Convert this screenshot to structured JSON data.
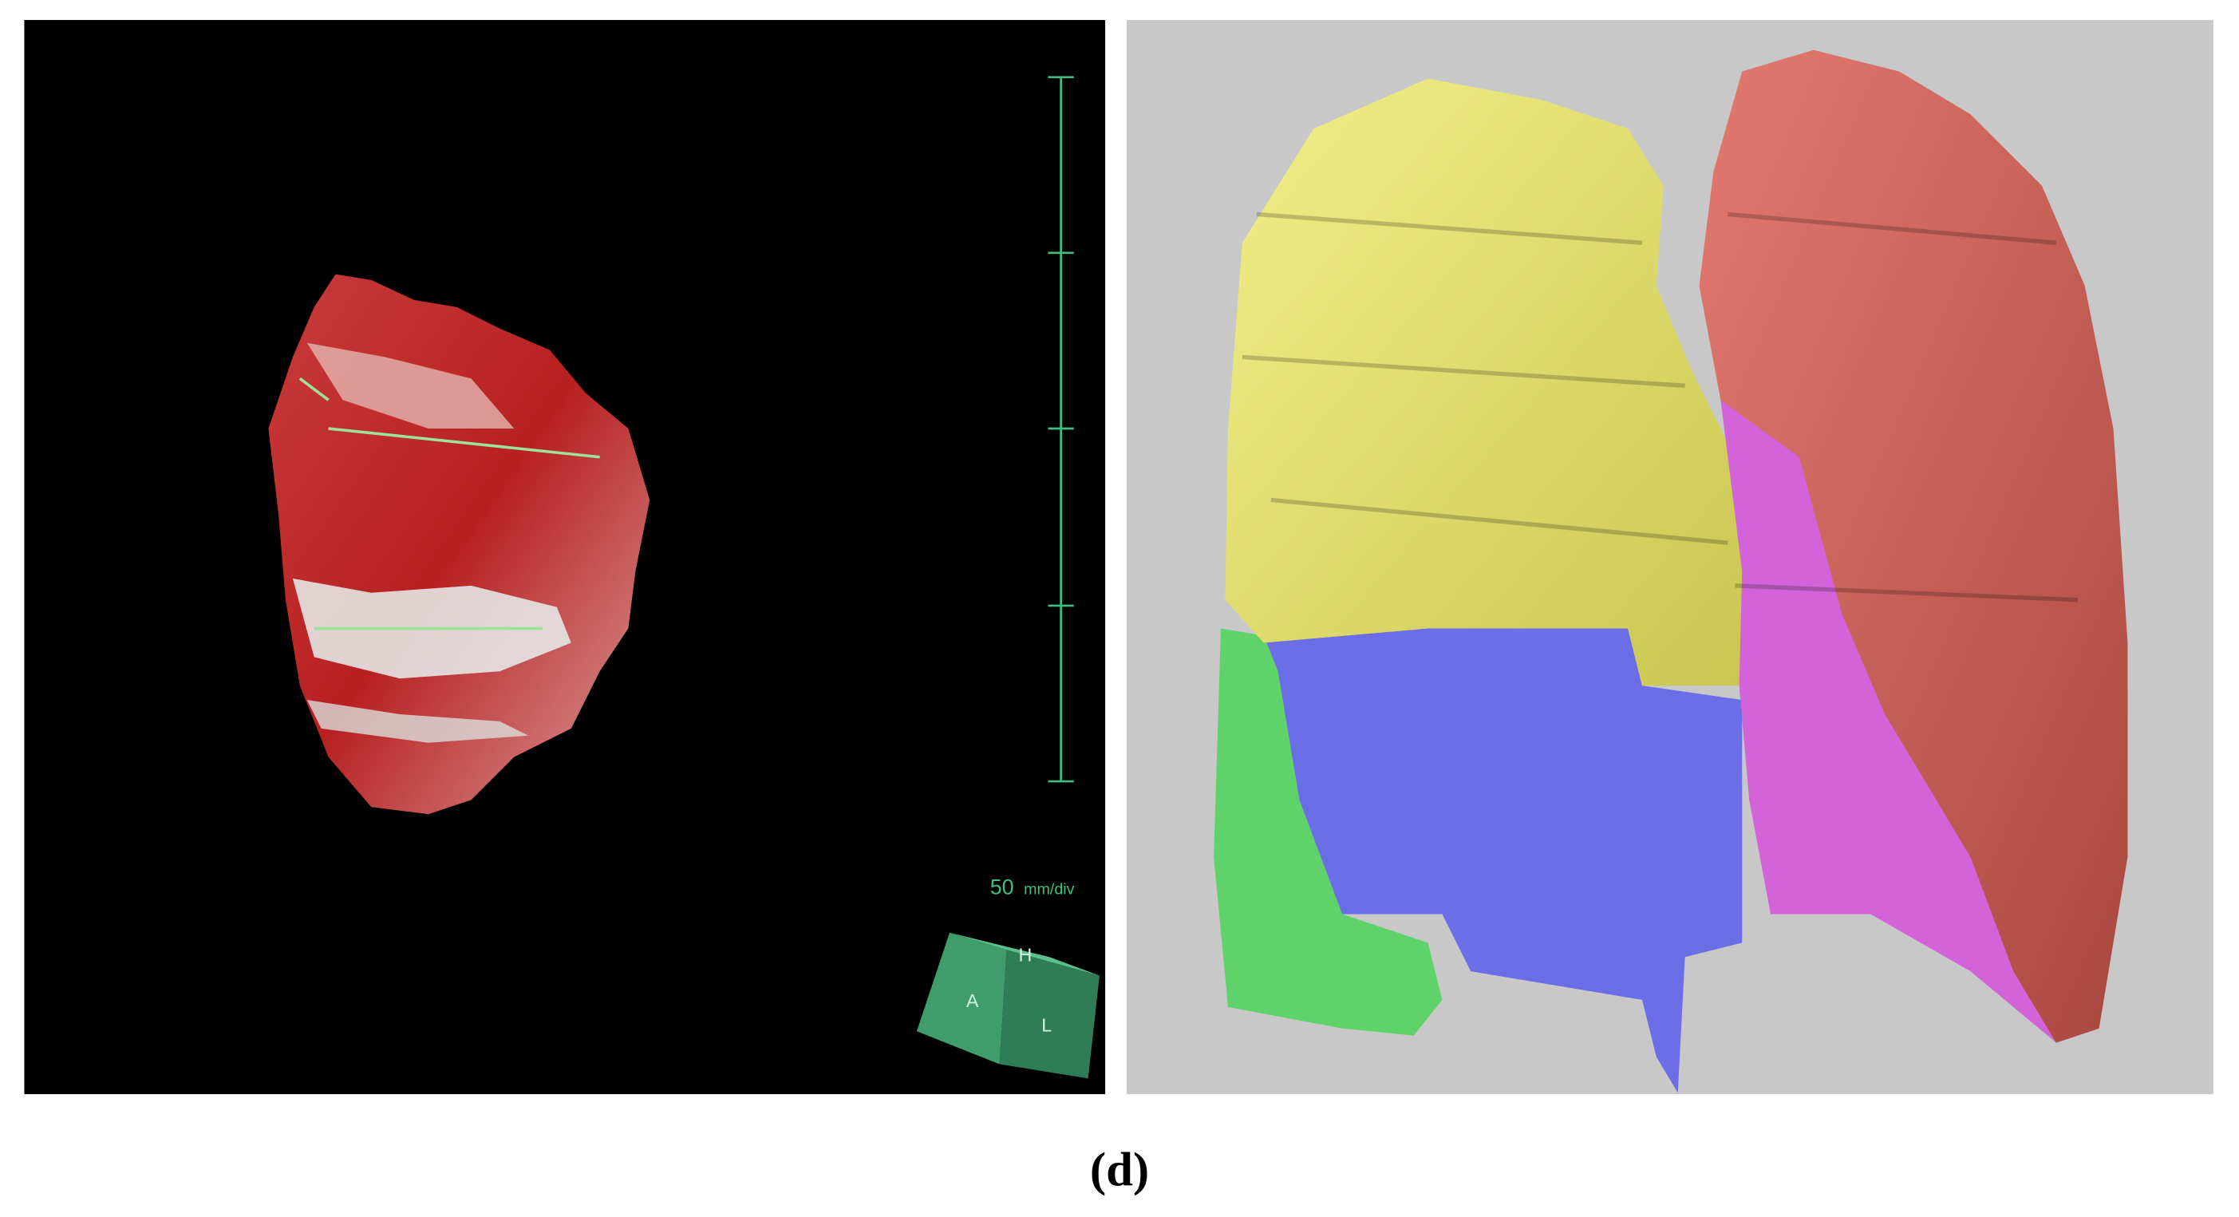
{
  "left_panel": {
    "scale_value": "50",
    "scale_unit": "mm/div",
    "cube_labels": [
      "H",
      "A",
      "L"
    ]
  },
  "caption": "(d)"
}
